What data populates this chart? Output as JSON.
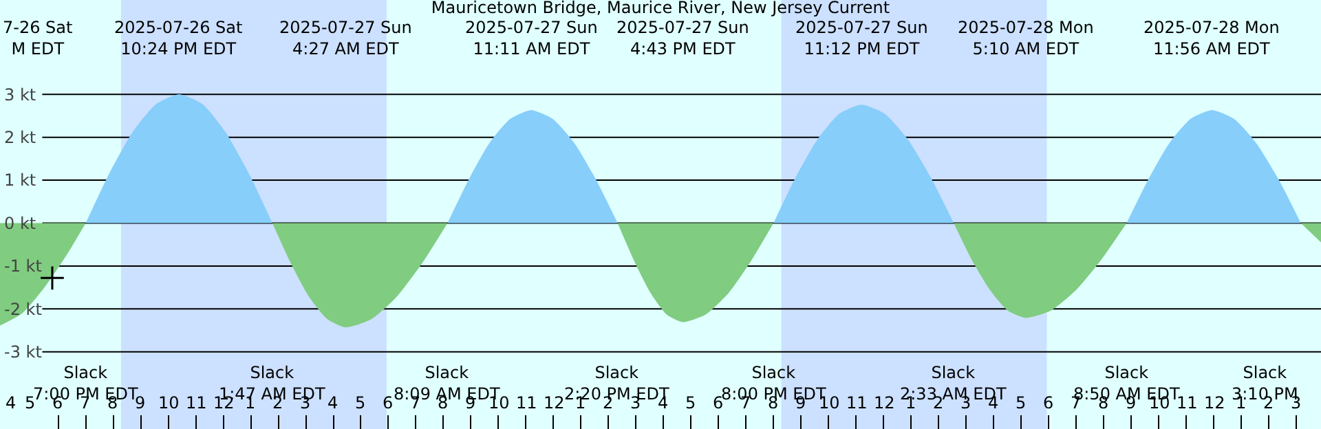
{
  "chart_data": {
    "type": "area",
    "title": "Mauricetown Bridge, Maurice River, New Jersey Current",
    "xlim": [
      "2025-07-26T15:53",
      "2025-07-28T15:54"
    ],
    "ylim": [
      -4.8,
      5.2
    ],
    "yticks": [
      {
        "value": 3,
        "label": "3 kt"
      },
      {
        "value": 2,
        "label": "2 kt"
      },
      {
        "value": 1,
        "label": "1 kt"
      },
      {
        "value": 0,
        "label": "0 kt"
      },
      {
        "value": -1,
        "label": "-1 kt"
      },
      {
        "value": -2,
        "label": "-2 kt"
      },
      {
        "value": -3,
        "label": "-3 kt"
      }
    ],
    "xticks": [
      {
        "value": "2025-07-26T16:00",
        "label": "4"
      },
      {
        "value": "2025-07-26T17:00",
        "label": "5"
      },
      {
        "value": "2025-07-26T18:00",
        "label": "6"
      },
      {
        "value": "2025-07-26T19:00",
        "label": "7"
      },
      {
        "value": "2025-07-26T20:00",
        "label": "8"
      },
      {
        "value": "2025-07-26T21:00",
        "label": "9"
      },
      {
        "value": "2025-07-26T22:00",
        "label": "10"
      },
      {
        "value": "2025-07-26T23:00",
        "label": "11"
      },
      {
        "value": "2025-07-27T00:00",
        "label": "12"
      },
      {
        "value": "2025-07-27T01:00",
        "label": "1"
      },
      {
        "value": "2025-07-27T02:00",
        "label": "2"
      },
      {
        "value": "2025-07-27T03:00",
        "label": "3"
      },
      {
        "value": "2025-07-27T04:00",
        "label": "4"
      },
      {
        "value": "2025-07-27T05:00",
        "label": "5"
      },
      {
        "value": "2025-07-27T06:00",
        "label": "6"
      },
      {
        "value": "2025-07-27T07:00",
        "label": "7"
      },
      {
        "value": "2025-07-27T08:00",
        "label": "8"
      },
      {
        "value": "2025-07-27T09:00",
        "label": "9"
      },
      {
        "value": "2025-07-27T10:00",
        "label": "10"
      },
      {
        "value": "2025-07-27T11:00",
        "label": "11"
      },
      {
        "value": "2025-07-27T12:00",
        "label": "12"
      },
      {
        "value": "2025-07-27T13:00",
        "label": "1"
      },
      {
        "value": "2025-07-27T14:00",
        "label": "2"
      },
      {
        "value": "2025-07-27T15:00",
        "label": "3"
      },
      {
        "value": "2025-07-27T16:00",
        "label": "4"
      },
      {
        "value": "2025-07-27T17:00",
        "label": "5"
      },
      {
        "value": "2025-07-27T18:00",
        "label": "6"
      },
      {
        "value": "2025-07-27T19:00",
        "label": "7"
      },
      {
        "value": "2025-07-27T20:00",
        "label": "8"
      },
      {
        "value": "2025-07-27T21:00",
        "label": "9"
      },
      {
        "value": "2025-07-27T22:00",
        "label": "10"
      },
      {
        "value": "2025-07-27T23:00",
        "label": "11"
      },
      {
        "value": "2025-07-28T00:00",
        "label": "12"
      },
      {
        "value": "2025-07-28T01:00",
        "label": "1"
      },
      {
        "value": "2025-07-28T02:00",
        "label": "2"
      },
      {
        "value": "2025-07-28T03:00",
        "label": "3"
      },
      {
        "value": "2025-07-28T04:00",
        "label": "4"
      },
      {
        "value": "2025-07-28T05:00",
        "label": "5"
      },
      {
        "value": "2025-07-28T06:00",
        "label": "6"
      },
      {
        "value": "2025-07-28T07:00",
        "label": "7"
      },
      {
        "value": "2025-07-28T08:00",
        "label": "8"
      },
      {
        "value": "2025-07-28T09:00",
        "label": "9"
      },
      {
        "value": "2025-07-28T10:00",
        "label": "10"
      },
      {
        "value": "2025-07-28T11:00",
        "label": "11"
      },
      {
        "value": "2025-07-28T12:00",
        "label": "12"
      },
      {
        "value": "2025-07-28T13:00",
        "label": "1"
      },
      {
        "value": "2025-07-28T14:00",
        "label": "2"
      },
      {
        "value": "2025-07-28T15:00",
        "label": "3"
      }
    ],
    "grid": "y",
    "bands": [
      {
        "axis": "x",
        "from": "2025-07-26T20:17",
        "to": "2025-07-27T05:56",
        "color": "#cce0ff"
      },
      {
        "axis": "x",
        "from": "2025-07-27T20:17",
        "to": "2025-07-28T05:56",
        "color": "#cce0ff"
      }
    ],
    "series": [
      {
        "color": "#87cefa",
        "x": [
          "2025-07-26T19:00",
          "2025-07-26T19:51",
          "2025-07-26T20:42",
          "2025-07-26T21:33",
          "2025-07-26T22:24",
          "2025-07-26T23:15",
          "2025-07-27T00:05",
          "2025-07-27T00:56",
          "2025-07-27T01:47",
          "2025-07-27T04:27",
          "2025-07-27T08:09",
          "2025-07-27T08:55",
          "2025-07-27T09:40",
          "2025-07-27T10:26",
          "2025-07-27T11:11",
          "2025-07-27T11:58",
          "2025-07-27T12:46",
          "2025-07-27T13:33",
          "2025-07-27T14:20",
          "2025-07-27T16:43",
          "2025-07-27T20:00",
          "2025-07-27T20:48",
          "2025-07-27T21:36",
          "2025-07-27T22:24",
          "2025-07-27T23:12",
          "2025-07-28T00:02",
          "2025-07-28T00:53",
          "2025-07-28T01:43",
          "2025-07-28T02:33",
          "2025-07-28T05:10",
          "2025-07-28T08:50",
          "2025-07-28T09:37",
          "2025-07-28T10:23",
          "2025-07-28T11:10",
          "2025-07-28T11:56",
          "2025-07-28T12:44",
          "2025-07-28T13:33",
          "2025-07-28T14:22",
          "2025-07-28T15:10"
        ],
        "values": [
          0,
          1.15,
          2.12,
          2.77,
          3.0,
          2.77,
          2.12,
          1.15,
          0,
          null,
          0,
          1.01,
          1.86,
          2.43,
          2.63,
          2.43,
          1.86,
          1.01,
          0,
          null,
          0,
          1.06,
          1.95,
          2.55,
          2.76,
          2.55,
          1.95,
          1.06,
          0,
          null,
          0,
          1.01,
          1.86,
          2.43,
          2.63,
          2.43,
          1.86,
          1.01,
          0
        ]
      },
      {
        "color": "#80cc80",
        "x": [
          "2025-07-26T15:53",
          "2025-07-26T16:42",
          "2025-07-26T17:30",
          "2025-07-26T18:18",
          "2025-07-26T19:00",
          "2025-07-26T22:24",
          "2025-07-27T01:47",
          "2025-07-27T02:27",
          "2025-07-27T03:07",
          "2025-07-27T03:47",
          "2025-07-27T04:27",
          "2025-07-27T05:23",
          "2025-07-27T06:18",
          "2025-07-27T07:14",
          "2025-07-27T08:09",
          "2025-07-27T11:11",
          "2025-07-27T14:20",
          "2025-07-27T14:56",
          "2025-07-27T15:32",
          "2025-07-27T16:07",
          "2025-07-27T16:43",
          "2025-07-27T17:32",
          "2025-07-27T18:22",
          "2025-07-27T19:11",
          "2025-07-27T20:00",
          "2025-07-27T23:12",
          "2025-07-28T02:33",
          "2025-07-28T03:12",
          "2025-07-28T03:52",
          "2025-07-28T04:31",
          "2025-07-28T05:10",
          "2025-07-28T06:05",
          "2025-07-28T07:00",
          "2025-07-28T07:55",
          "2025-07-28T08:50",
          "2025-07-28T11:56",
          "2025-07-28T15:10",
          "2025-07-28T15:54"
        ],
        "values": [
          -2.39,
          -2.1,
          -1.5,
          -0.75,
          0,
          null,
          0,
          -0.93,
          -1.72,
          -2.24,
          -2.43,
          -2.24,
          -1.72,
          -0.93,
          0,
          null,
          0,
          -0.88,
          -1.63,
          -2.13,
          -2.31,
          -2.13,
          -1.63,
          -0.88,
          0,
          null,
          0,
          -0.85,
          -1.56,
          -2.04,
          -2.21,
          -2.04,
          -1.56,
          -0.85,
          0,
          null,
          0,
          -0.45
        ]
      },
      {
        "type": "scatter",
        "marker": "cross",
        "color": "#000000",
        "x": [
          "2025-07-26T17:47"
        ],
        "values": [
          -1.28
        ]
      }
    ],
    "annotations": [
      "7-26 Sat\nM EDT",
      "Slack\n7:00 PM EDT",
      "2025-07-26 Sat\n10:24 PM EDT",
      "Slack\n1:47 AM EDT",
      "2025-07-27 Sun\n4:27 AM EDT",
      "Slack\n8:09 AM EDT",
      "2025-07-27 Sun\n11:11 AM EDT",
      "Slack\n2:20 PM EDT",
      "2025-07-27 Sun\n4:43 PM EDT",
      "Slack\n8:00 PM EDT",
      "2025-07-27 Sun\n11:12 PM EDT",
      "Slack\n2:33 AM EDT",
      "2025-07-28 Mon\n5:10 AM EDT",
      "Slack\n8:50 AM EDT",
      "2025-07-28 Mon\n11:56 AM EDT",
      "Slack\n3:10 PM"
    ]
  }
}
